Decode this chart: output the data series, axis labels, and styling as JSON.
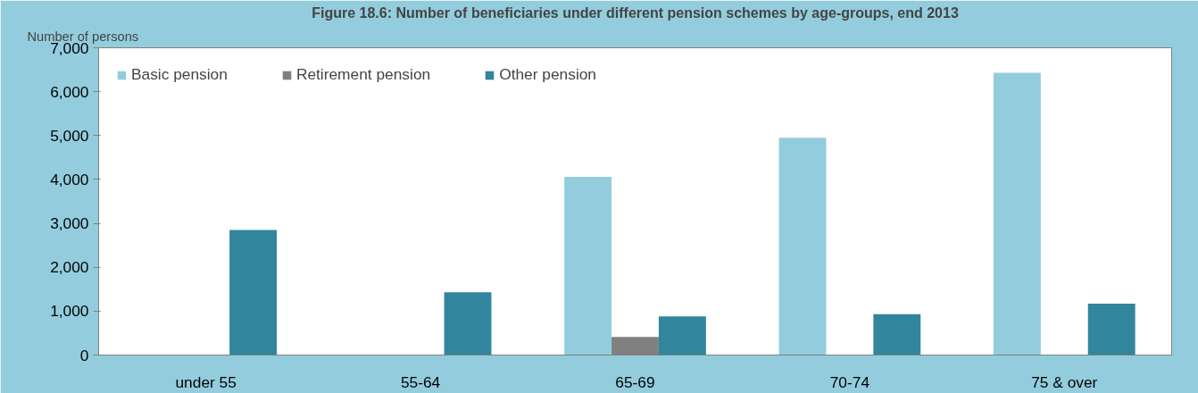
{
  "chart_data": {
    "type": "bar",
    "title": "Figure 18.6: Number of beneficiaries under different pension schemes by age-groups, end 2013",
    "ylabel": "Number of persons",
    "categories": [
      "under 55",
      "55-64",
      "65-69",
      "70-74",
      "75 & over"
    ],
    "series": [
      {
        "name": "Basic pension",
        "color": "#93cddd",
        "values": [
          0,
          0,
          4060,
          4950,
          6430
        ]
      },
      {
        "name": "Retirement pension",
        "color": "#808080",
        "values": [
          0,
          0,
          410,
          0,
          0
        ]
      },
      {
        "name": "Other pension",
        "color": "#31859c",
        "values": [
          2850,
          1430,
          880,
          930,
          1170
        ]
      }
    ],
    "ylim": [
      0,
      7000
    ],
    "yticks": [
      {
        "value": 0,
        "label": "0"
      },
      {
        "value": 1000,
        "label": "1,000"
      },
      {
        "value": 2000,
        "label": "2,000"
      },
      {
        "value": 3000,
        "label": "3,000"
      },
      {
        "value": 4000,
        "label": "4,000"
      },
      {
        "value": 5000,
        "label": "5,000"
      },
      {
        "value": 6000,
        "label": "6,000"
      },
      {
        "value": 7000,
        "label": "7,000"
      }
    ],
    "grid": false,
    "legend": "top left"
  }
}
